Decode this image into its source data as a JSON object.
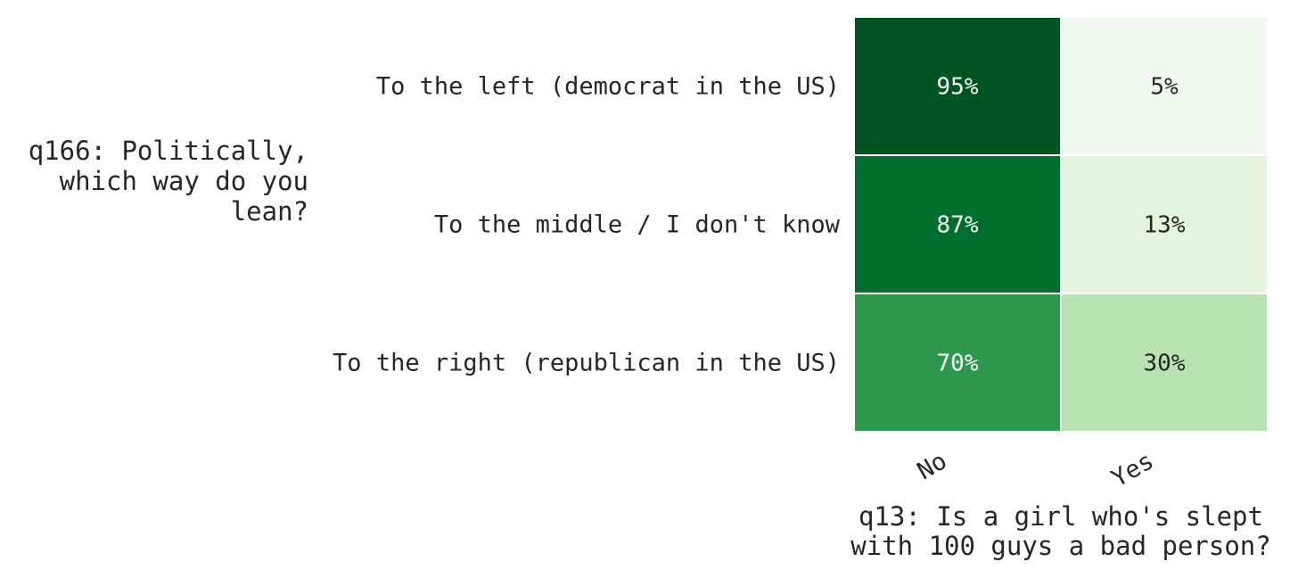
{
  "chart_data": {
    "type": "heatmap",
    "title": "",
    "xlabel_lines": [
      "q13: Is a girl who's slept",
      "with 100 guys a bad person?"
    ],
    "ylabel_lines": [
      "q166: Politically,",
      "which way do you",
      "lean?"
    ],
    "x_categories": [
      "No",
      "Yes"
    ],
    "y_categories": [
      "To the left (democrat in the US)",
      "To the middle / I don't know",
      "To the right (republican in the US)"
    ],
    "values": [
      [
        95,
        5
      ],
      [
        87,
        13
      ],
      [
        70,
        30
      ]
    ],
    "value_labels": [
      [
        "95%",
        "5%"
      ],
      [
        "87%",
        "13%"
      ],
      [
        "70%",
        "30%"
      ]
    ],
    "value_unit": "%",
    "color_range": [
      0,
      100
    ],
    "colormap": "Greens",
    "colors": {
      "cell_border": "#ffffff",
      "text_dark": "#262626",
      "text_light": "#ffffff"
    },
    "grid": false,
    "legend": "none"
  }
}
